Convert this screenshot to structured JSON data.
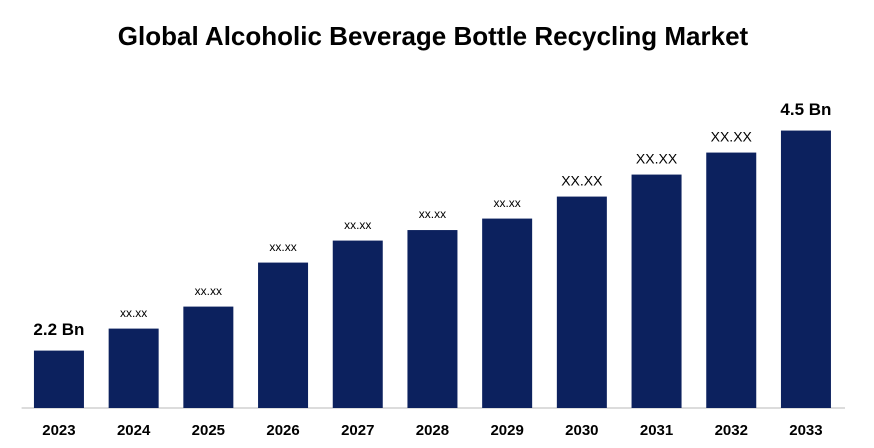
{
  "chart_data": {
    "type": "bar",
    "title": "Global Alcoholic Beverage Bottle Recycling Market",
    "categories": [
      "2023",
      "2024",
      "2025",
      "2026",
      "2027",
      "2028",
      "2029",
      "2030",
      "2031",
      "2032",
      "2033"
    ],
    "values": [
      2.2,
      2.43,
      2.66,
      3.12,
      3.35,
      3.46,
      3.58,
      3.81,
      4.04,
      4.27,
      4.5
    ],
    "value_labels": [
      "2.2 Bn",
      "xx.xx",
      "xx.xx",
      "xx.xx",
      "xx.xx",
      "xx.xx",
      "xx.xx",
      "XX.XX",
      "XX.XX",
      "XX.XX",
      "4.5 Bn"
    ],
    "color": "#0c215e",
    "ylim": [
      1.6,
      4.6
    ]
  }
}
